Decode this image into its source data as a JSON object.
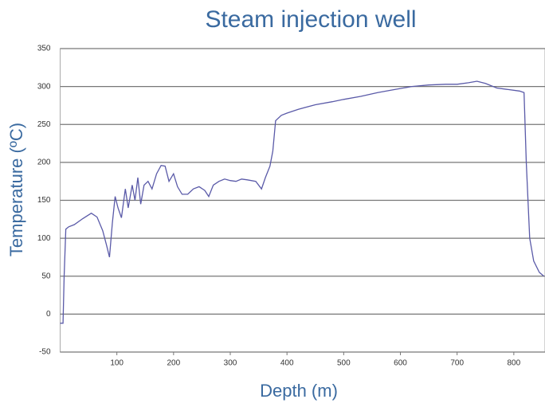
{
  "chart_data": {
    "type": "line",
    "title": "Steam injection well",
    "x_label": "Depth (m)",
    "y_label": "Temperature (ºC)",
    "xlim": [
      0,
      855
    ],
    "ylim": [
      -50,
      350
    ],
    "xticks": [
      100,
      200,
      300,
      400,
      500,
      600,
      700,
      800
    ],
    "yticks": [
      -50,
      0,
      50,
      100,
      150,
      200,
      250,
      300,
      350
    ],
    "grid": true,
    "series": [
      {
        "name": "Temperature",
        "color": "#5a5aa8",
        "x": [
          0,
          5,
          7,
          10,
          15,
          25,
          40,
          55,
          65,
          75,
          82,
          87,
          92,
          97,
          102,
          108,
          115,
          120,
          127,
          132,
          137,
          142,
          148,
          155,
          162,
          170,
          178,
          185,
          192,
          200,
          207,
          215,
          225,
          235,
          245,
          255,
          262,
          270,
          280,
          290,
          300,
          310,
          320,
          330,
          345,
          355,
          362,
          370,
          375,
          380,
          390,
          400,
          420,
          450,
          480,
          500,
          530,
          560,
          590,
          620,
          650,
          680,
          700,
          720,
          735,
          750,
          770,
          790,
          810,
          818,
          822,
          828,
          835,
          845,
          853
        ],
        "values": [
          -12,
          -12,
          50,
          112,
          115,
          118,
          126,
          133,
          128,
          110,
          90,
          75,
          120,
          155,
          140,
          127,
          165,
          140,
          170,
          150,
          180,
          145,
          170,
          175,
          165,
          185,
          196,
          195,
          175,
          185,
          168,
          158,
          158,
          165,
          168,
          163,
          155,
          170,
          175,
          178,
          176,
          175,
          178,
          177,
          175,
          165,
          180,
          195,
          215,
          255,
          262,
          265,
          270,
          276,
          280,
          283,
          287,
          292,
          296,
          300,
          302,
          303,
          303,
          305,
          307,
          304,
          298,
          296,
          294,
          292,
          200,
          100,
          70,
          55,
          50
        ]
      }
    ]
  }
}
